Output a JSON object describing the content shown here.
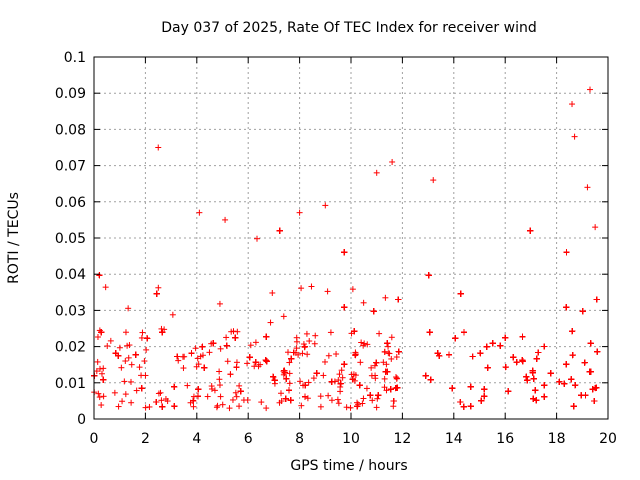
{
  "chart_data": {
    "type": "scatter",
    "title": "Day 037 of 2025, Rate Of TEC Index for receiver wind",
    "xlabel": "GPS time / hours",
    "ylabel": "ROTI / TECUs",
    "xlim": [
      0,
      20
    ],
    "ylim": [
      0,
      0.1
    ],
    "x_ticks": [
      "0",
      "2",
      "4",
      "6",
      "8",
      "10",
      "12",
      "14",
      "16",
      "18",
      "20"
    ],
    "y_ticks": [
      "0",
      "0.01",
      "0.02",
      "0.03",
      "0.04",
      "0.05",
      "0.06",
      "0.07",
      "0.08",
      "0.09",
      "0.1"
    ],
    "grid": true,
    "marker": "+",
    "series_color": "#ff0000",
    "data_gap_hours": [
      11.9,
      12.9
    ],
    "series": [
      {
        "name": "ROTI",
        "segments": [
          {
            "x_range": [
              0.0,
              11.9
            ],
            "typical_y_range": [
              0.003,
              0.025
            ]
          },
          {
            "x_range": [
              12.9,
              19.6
            ],
            "typical_y_range": [
              0.003,
              0.025
            ]
          }
        ],
        "notable_points": [
          {
            "x": 2.5,
            "y": 0.075
          },
          {
            "x": 4.1,
            "y": 0.057
          },
          {
            "x": 5.1,
            "y": 0.055
          },
          {
            "x": 8.0,
            "y": 0.057
          },
          {
            "x": 9.0,
            "y": 0.059
          },
          {
            "x": 11.0,
            "y": 0.068
          },
          {
            "x": 11.6,
            "y": 0.071
          },
          {
            "x": 13.2,
            "y": 0.066
          },
          {
            "x": 18.6,
            "y": 0.087
          },
          {
            "x": 18.7,
            "y": 0.078
          },
          {
            "x": 19.3,
            "y": 0.091
          },
          {
            "x": 19.2,
            "y": 0.064
          },
          {
            "x": 19.5,
            "y": 0.053
          }
        ]
      }
    ]
  }
}
